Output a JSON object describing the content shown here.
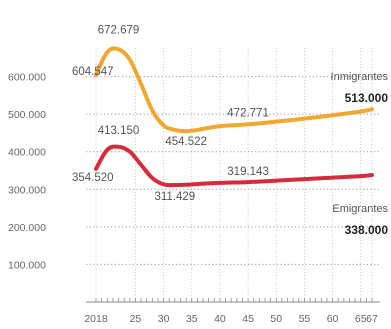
{
  "chart_data": {
    "type": "line",
    "x": [
      2018,
      2020,
      2022,
      2024,
      2026,
      2028,
      2030,
      2032,
      2034,
      2036,
      2040,
      2045,
      2050,
      2055,
      2060,
      2065,
      2067
    ],
    "xticks": [
      2018,
      2025,
      2030,
      2035,
      2040,
      2045,
      2050,
      2055,
      2060,
      2065,
      2067
    ],
    "xtick_labels": [
      "2018",
      "25",
      "30",
      "35",
      "40",
      "45",
      "50",
      "55",
      "60",
      "65",
      "67"
    ],
    "ylim": [
      0,
      700000
    ],
    "yticks": [
      100000,
      200000,
      300000,
      400000,
      500000,
      600000
    ],
    "ytick_labels": [
      "100.000",
      "200.000",
      "300.000",
      "400.000",
      "500.000",
      "600.000"
    ],
    "grid": true,
    "series": [
      {
        "name": "Inmigrantes",
        "final_value_label": "513.000",
        "color": "#f0a830",
        "values": [
          604547,
          665000,
          672679,
          645000,
          580000,
          510000,
          470000,
          458000,
          454522,
          458000,
          468000,
          472771,
          480000,
          488000,
          497000,
          507000,
          513000
        ],
        "annotations": [
          {
            "x": 2018,
            "y": 604547,
            "label": "604.547"
          },
          {
            "x": 2022,
            "y": 672679,
            "label": "672.679"
          },
          {
            "x": 2034,
            "y": 454522,
            "label": "454.522"
          },
          {
            "x": 2045,
            "y": 472771,
            "label": "472.771"
          }
        ]
      },
      {
        "name": "Emigrantes",
        "final_value_label": "338.000",
        "color": "#d62b3a",
        "values": [
          354520,
          405000,
          413150,
          400000,
          365000,
          330000,
          313000,
          311429,
          312000,
          314000,
          317000,
          319143,
          323000,
          327000,
          331000,
          335000,
          338000
        ],
        "annotations": [
          {
            "x": 2018,
            "y": 354520,
            "label": "354.520"
          },
          {
            "x": 2022,
            "y": 413150,
            "label": "413.150"
          },
          {
            "x": 2032,
            "y": 311429,
            "label": "311.429"
          },
          {
            "x": 2045,
            "y": 319143,
            "label": "319.143"
          }
        ]
      }
    ]
  }
}
